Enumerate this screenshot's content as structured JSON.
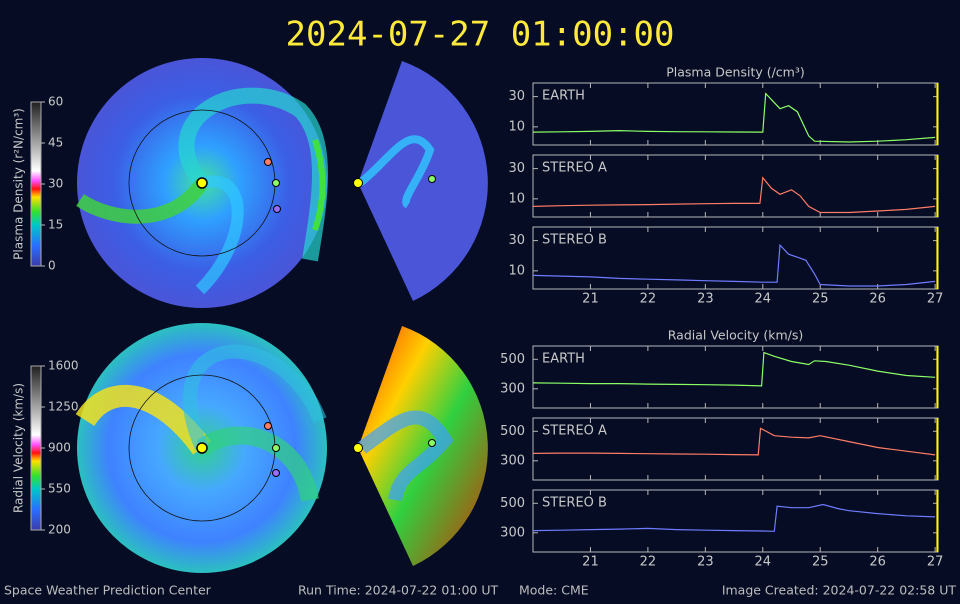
{
  "title": "2024-07-27 01:00:00",
  "footer": {
    "left": "Space Weather Prediction Center",
    "run_time": "Run Time: 2024-07-22 01:00 UT",
    "mode": "Mode: CME",
    "right": "Image Created: 2024-07-22 02:58 UT"
  },
  "colorbars": [
    {
      "label": "Plasma Density (r²N/cm³)",
      "lim": [
        0,
        60
      ],
      "ticks": [
        0,
        15,
        30,
        45,
        60
      ]
    },
    {
      "label": "Radial Velocity (km/s)",
      "lim": [
        200,
        1600
      ],
      "ticks": [
        200,
        550,
        900,
        1250,
        1600
      ]
    }
  ],
  "chart_data": [
    {
      "type": "line",
      "title": "Plasma Density (/cm³)",
      "xlim": [
        20,
        27.05
      ],
      "xticks": [
        21,
        22,
        23,
        24,
        25,
        26,
        27
      ],
      "ylim": [
        -2,
        39
      ],
      "yticks": [
        10,
        30
      ],
      "marker_x": 27.04,
      "x": [
        20,
        20.5,
        21,
        21.5,
        22,
        22.5,
        23,
        23.5,
        24,
        24.05,
        24.15,
        24.3,
        24.45,
        24.6,
        24.7,
        24.8,
        24.9,
        25.5,
        26,
        26.5,
        27
      ],
      "series": [
        {
          "name": "EARTH",
          "color": "#8cff66",
          "values": [
            6.5,
            6.7,
            7,
            7.5,
            7,
            6.8,
            6.7,
            6.6,
            6.5,
            32,
            28,
            22,
            24,
            20,
            12,
            4,
            0.5,
            0,
            0.5,
            1.5,
            3
          ]
        }
      ]
    },
    {
      "type": "line",
      "xlim": [
        20,
        27.05
      ],
      "xticks": [
        21,
        22,
        23,
        24,
        25,
        26,
        27
      ],
      "ylim": [
        -2,
        39
      ],
      "yticks": [
        10,
        30
      ],
      "marker_x": 27.04,
      "x": [
        20,
        20.5,
        21,
        21.5,
        22,
        22.5,
        23,
        23.5,
        23.95,
        24.0,
        24.15,
        24.3,
        24.5,
        24.65,
        24.8,
        25,
        25.5,
        26,
        26.5,
        27
      ],
      "series": [
        {
          "name": "STEREO A",
          "color": "#ff7c66",
          "values": [
            5,
            5.5,
            5.8,
            6,
            6.2,
            6.5,
            6.8,
            7,
            7,
            24,
            17,
            13,
            16,
            12,
            5,
            1,
            1,
            2,
            3,
            5
          ]
        }
      ]
    },
    {
      "type": "line",
      "xlim": [
        20,
        27.05
      ],
      "xticks": [
        21,
        22,
        23,
        24,
        25,
        26,
        27
      ],
      "ylim": [
        -2,
        39
      ],
      "yticks": [
        10,
        30
      ],
      "marker_x": 27.04,
      "x": [
        20,
        20.5,
        21,
        21.5,
        22,
        22.5,
        23,
        23.5,
        24,
        24.25,
        24.3,
        24.45,
        24.6,
        24.75,
        24.9,
        25,
        25.5,
        26,
        26.5,
        27
      ],
      "series": [
        {
          "name": "STEREO B",
          "color": "#6f7cff",
          "values": [
            7,
            6.5,
            6,
            5,
            4.5,
            4,
            3.5,
            3,
            2.5,
            2.5,
            27,
            21,
            19,
            17,
            8,
            1,
            0,
            0,
            1,
            3
          ]
        }
      ]
    },
    {
      "type": "line",
      "title": "Radial Velocity (km/s)",
      "xlim": [
        20,
        27.05
      ],
      "xticks": [
        21,
        22,
        23,
        24,
        25,
        26,
        27
      ],
      "ylim": [
        170,
        590
      ],
      "yticks": [
        300,
        500
      ],
      "marker_x": 27.04,
      "x": [
        20,
        20.5,
        21,
        21.5,
        22,
        22.5,
        23,
        23.5,
        23.98,
        24.02,
        24.2,
        24.5,
        24.8,
        24.9,
        25.1,
        25.5,
        26,
        26.5,
        27
      ],
      "series": [
        {
          "name": "EARTH",
          "color": "#8cff66",
          "values": [
            340,
            338,
            335,
            335,
            332,
            330,
            328,
            325,
            320,
            545,
            520,
            485,
            465,
            490,
            485,
            460,
            420,
            390,
            378
          ]
        }
      ]
    },
    {
      "type": "line",
      "xlim": [
        20,
        27.05
      ],
      "xticks": [
        21,
        22,
        23,
        24,
        25,
        26,
        27
      ],
      "ylim": [
        170,
        590
      ],
      "yticks": [
        300,
        500
      ],
      "marker_x": 27.04,
      "x": [
        20,
        20.5,
        21,
        21.5,
        22,
        22.5,
        23,
        23.5,
        23.92,
        23.96,
        24.2,
        24.5,
        24.8,
        25,
        25.5,
        26,
        26.5,
        27
      ],
      "series": [
        {
          "name": "STEREO A",
          "color": "#ff7c66",
          "values": [
            350,
            352,
            352,
            350,
            348,
            346,
            345,
            342,
            340,
            520,
            470,
            460,
            455,
            470,
            430,
            390,
            365,
            340
          ]
        }
      ]
    },
    {
      "type": "line",
      "xlim": [
        20,
        27.05
      ],
      "xticks": [
        21,
        22,
        23,
        24,
        25,
        26,
        27
      ],
      "ylim": [
        170,
        590
      ],
      "yticks": [
        300,
        500
      ],
      "marker_x": 27.04,
      "x": [
        20,
        20.5,
        21,
        21.5,
        22,
        22.5,
        23,
        23.5,
        24,
        24.2,
        24.25,
        24.5,
        24.8,
        25.05,
        25.3,
        25.5,
        26,
        26.5,
        27
      ],
      "series": [
        {
          "name": "STEREO B",
          "color": "#6f7cff",
          "values": [
            315,
            318,
            322,
            325,
            330,
            322,
            318,
            315,
            312,
            310,
            480,
            470,
            470,
            492,
            465,
            450,
            430,
            415,
            408
          ]
        }
      ]
    }
  ]
}
